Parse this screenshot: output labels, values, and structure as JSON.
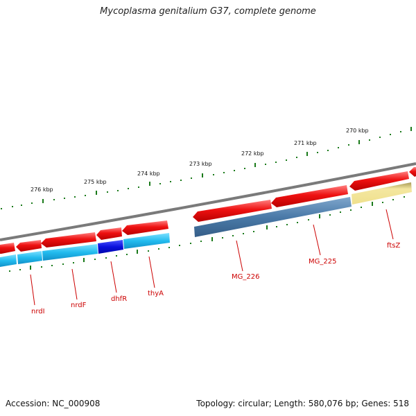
{
  "title": "Mycoplasma genitalium G37, complete genome",
  "footer": {
    "accession": "Accession: NC_000908",
    "summary": "Topology: circular; Length: 580,076 bp; Genes: 518"
  },
  "colors": {
    "backbone": "#808080",
    "forward_cds": "#ee1111",
    "reverse_cds_light": "#22bbee",
    "reverse_cds_dark": "#0a10dd",
    "reverse_cds_steel": "#4a7aa8",
    "reverse_cds_khaki": "#f0e090",
    "tick": "#1a7a1a",
    "label_text": "#cc0000"
  },
  "scale_labels": [
    "276 kbp",
    "275 kbp",
    "274 kbp",
    "273 kbp",
    "272 kbp",
    "271 kbp",
    "270 kbp"
  ],
  "gene_labels": [
    "nrdI",
    "nrdF",
    "dhfR",
    "thyA",
    "MG_226",
    "MG_225",
    "ftsZ"
  ]
}
